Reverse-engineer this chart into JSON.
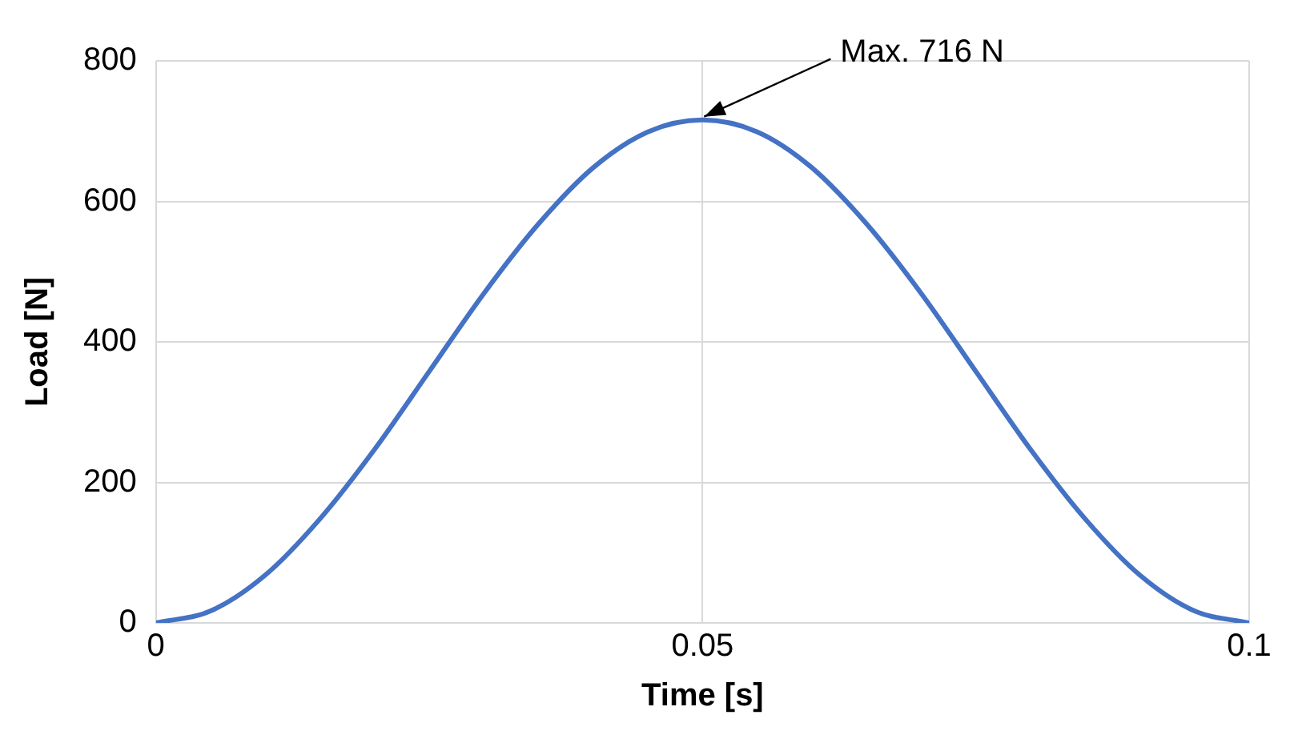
{
  "chart_data": {
    "type": "line",
    "xlabel": "Time [s]",
    "ylabel": "Load [N]",
    "x": [
      0,
      0.005,
      0.01,
      0.015,
      0.02,
      0.025,
      0.03,
      0.035,
      0.04,
      0.045,
      0.05,
      0.055,
      0.06,
      0.065,
      0.07,
      0.075,
      0.08,
      0.085,
      0.09,
      0.095,
      0.1
    ],
    "series": [
      {
        "color": "#4472c4",
        "values": [
          0,
          17,
          68,
          148,
          247,
          358,
          469,
          568,
          648,
          699,
          716,
          699,
          648,
          568,
          469,
          358,
          247,
          148,
          68,
          17,
          0
        ]
      }
    ],
    "xlim": [
      0,
      0.1
    ],
    "xticks": [
      0,
      0.05,
      0.1
    ],
    "ylim": [
      0,
      800
    ],
    "yticks": [
      0,
      200,
      400,
      600,
      800
    ],
    "grid": true,
    "legend": false,
    "marker": "none",
    "line_style": "solid",
    "annotations": [
      {
        "text": "Max. 716 N",
        "x": 0.05,
        "y": 716
      }
    ]
  }
}
